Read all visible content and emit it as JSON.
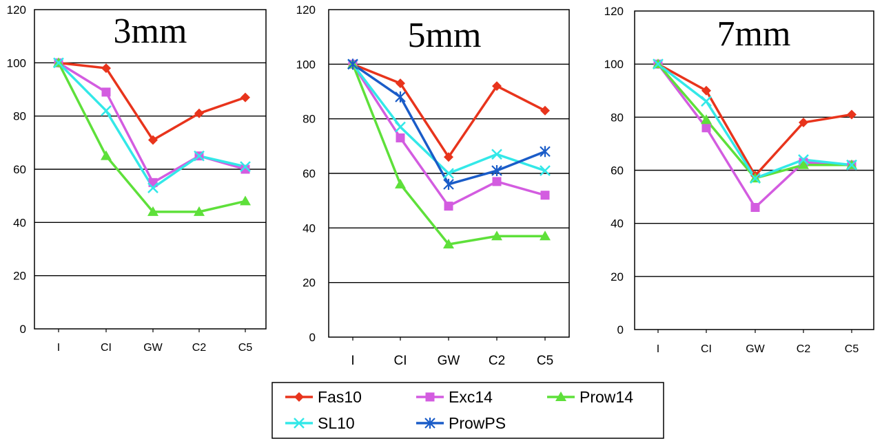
{
  "chart_data": [
    {
      "type": "line",
      "title": "3mm",
      "categories": [
        "I",
        "CI",
        "GW",
        "C2",
        "C5"
      ],
      "ylim": [
        0,
        120
      ],
      "yticks": [
        "0",
        "20",
        "40",
        "60",
        "80",
        "100",
        "120"
      ],
      "grid": true,
      "series": [
        {
          "name": "Fas10",
          "values": [
            100,
            98,
            71,
            81,
            87
          ]
        },
        {
          "name": "Exc14",
          "values": [
            100,
            89,
            55,
            65,
            60
          ]
        },
        {
          "name": "Prow14",
          "values": [
            100,
            65,
            44,
            44,
            48
          ]
        },
        {
          "name": "SL10",
          "values": [
            100,
            82,
            53,
            65,
            61
          ]
        }
      ]
    },
    {
      "type": "line",
      "title": "5mm",
      "categories": [
        "I",
        "CI",
        "GW",
        "C2",
        "C5"
      ],
      "ylim": [
        0,
        120
      ],
      "yticks": [
        "0",
        "20",
        "40",
        "60",
        "80",
        "100",
        "120"
      ],
      "grid": true,
      "series": [
        {
          "name": "Fas10",
          "values": [
            100,
            93,
            66,
            92,
            83
          ]
        },
        {
          "name": "Exc14",
          "values": [
            100,
            73,
            48,
            57,
            52
          ]
        },
        {
          "name": "Prow14",
          "values": [
            100,
            56,
            34,
            37,
            37
          ]
        },
        {
          "name": "SL10",
          "values": [
            100,
            77,
            60,
            67,
            61
          ]
        },
        {
          "name": "ProwPS",
          "values": [
            100,
            88,
            56,
            61,
            68
          ]
        }
      ]
    },
    {
      "type": "line",
      "title": "7mm",
      "categories": [
        "I",
        "CI",
        "GW",
        "C2",
        "C5"
      ],
      "ylim": [
        0,
        120
      ],
      "yticks": [
        "0",
        "20",
        "40",
        "60",
        "80",
        "100",
        "120"
      ],
      "grid": true,
      "series": [
        {
          "name": "Fas10",
          "values": [
            100,
            90,
            58,
            78,
            81
          ]
        },
        {
          "name": "Exc14",
          "values": [
            100,
            76,
            46,
            63,
            62
          ]
        },
        {
          "name": "Prow14",
          "values": [
            100,
            79,
            57,
            62,
            62
          ]
        },
        {
          "name": "SL10",
          "values": [
            100,
            86,
            57,
            64,
            62
          ]
        }
      ]
    }
  ],
  "legend": {
    "placement": "bottom-center",
    "items": [
      {
        "name": "Fas10",
        "color": "#e8341c",
        "marker": "diamond"
      },
      {
        "name": "Exc14",
        "color": "#d35ce0",
        "marker": "square"
      },
      {
        "name": "Prow14",
        "color": "#5ee03a",
        "marker": "triangle"
      },
      {
        "name": "SL10",
        "color": "#33e8e8",
        "marker": "x"
      },
      {
        "name": "ProwPS",
        "color": "#1a5cc8",
        "marker": "star"
      }
    ]
  }
}
